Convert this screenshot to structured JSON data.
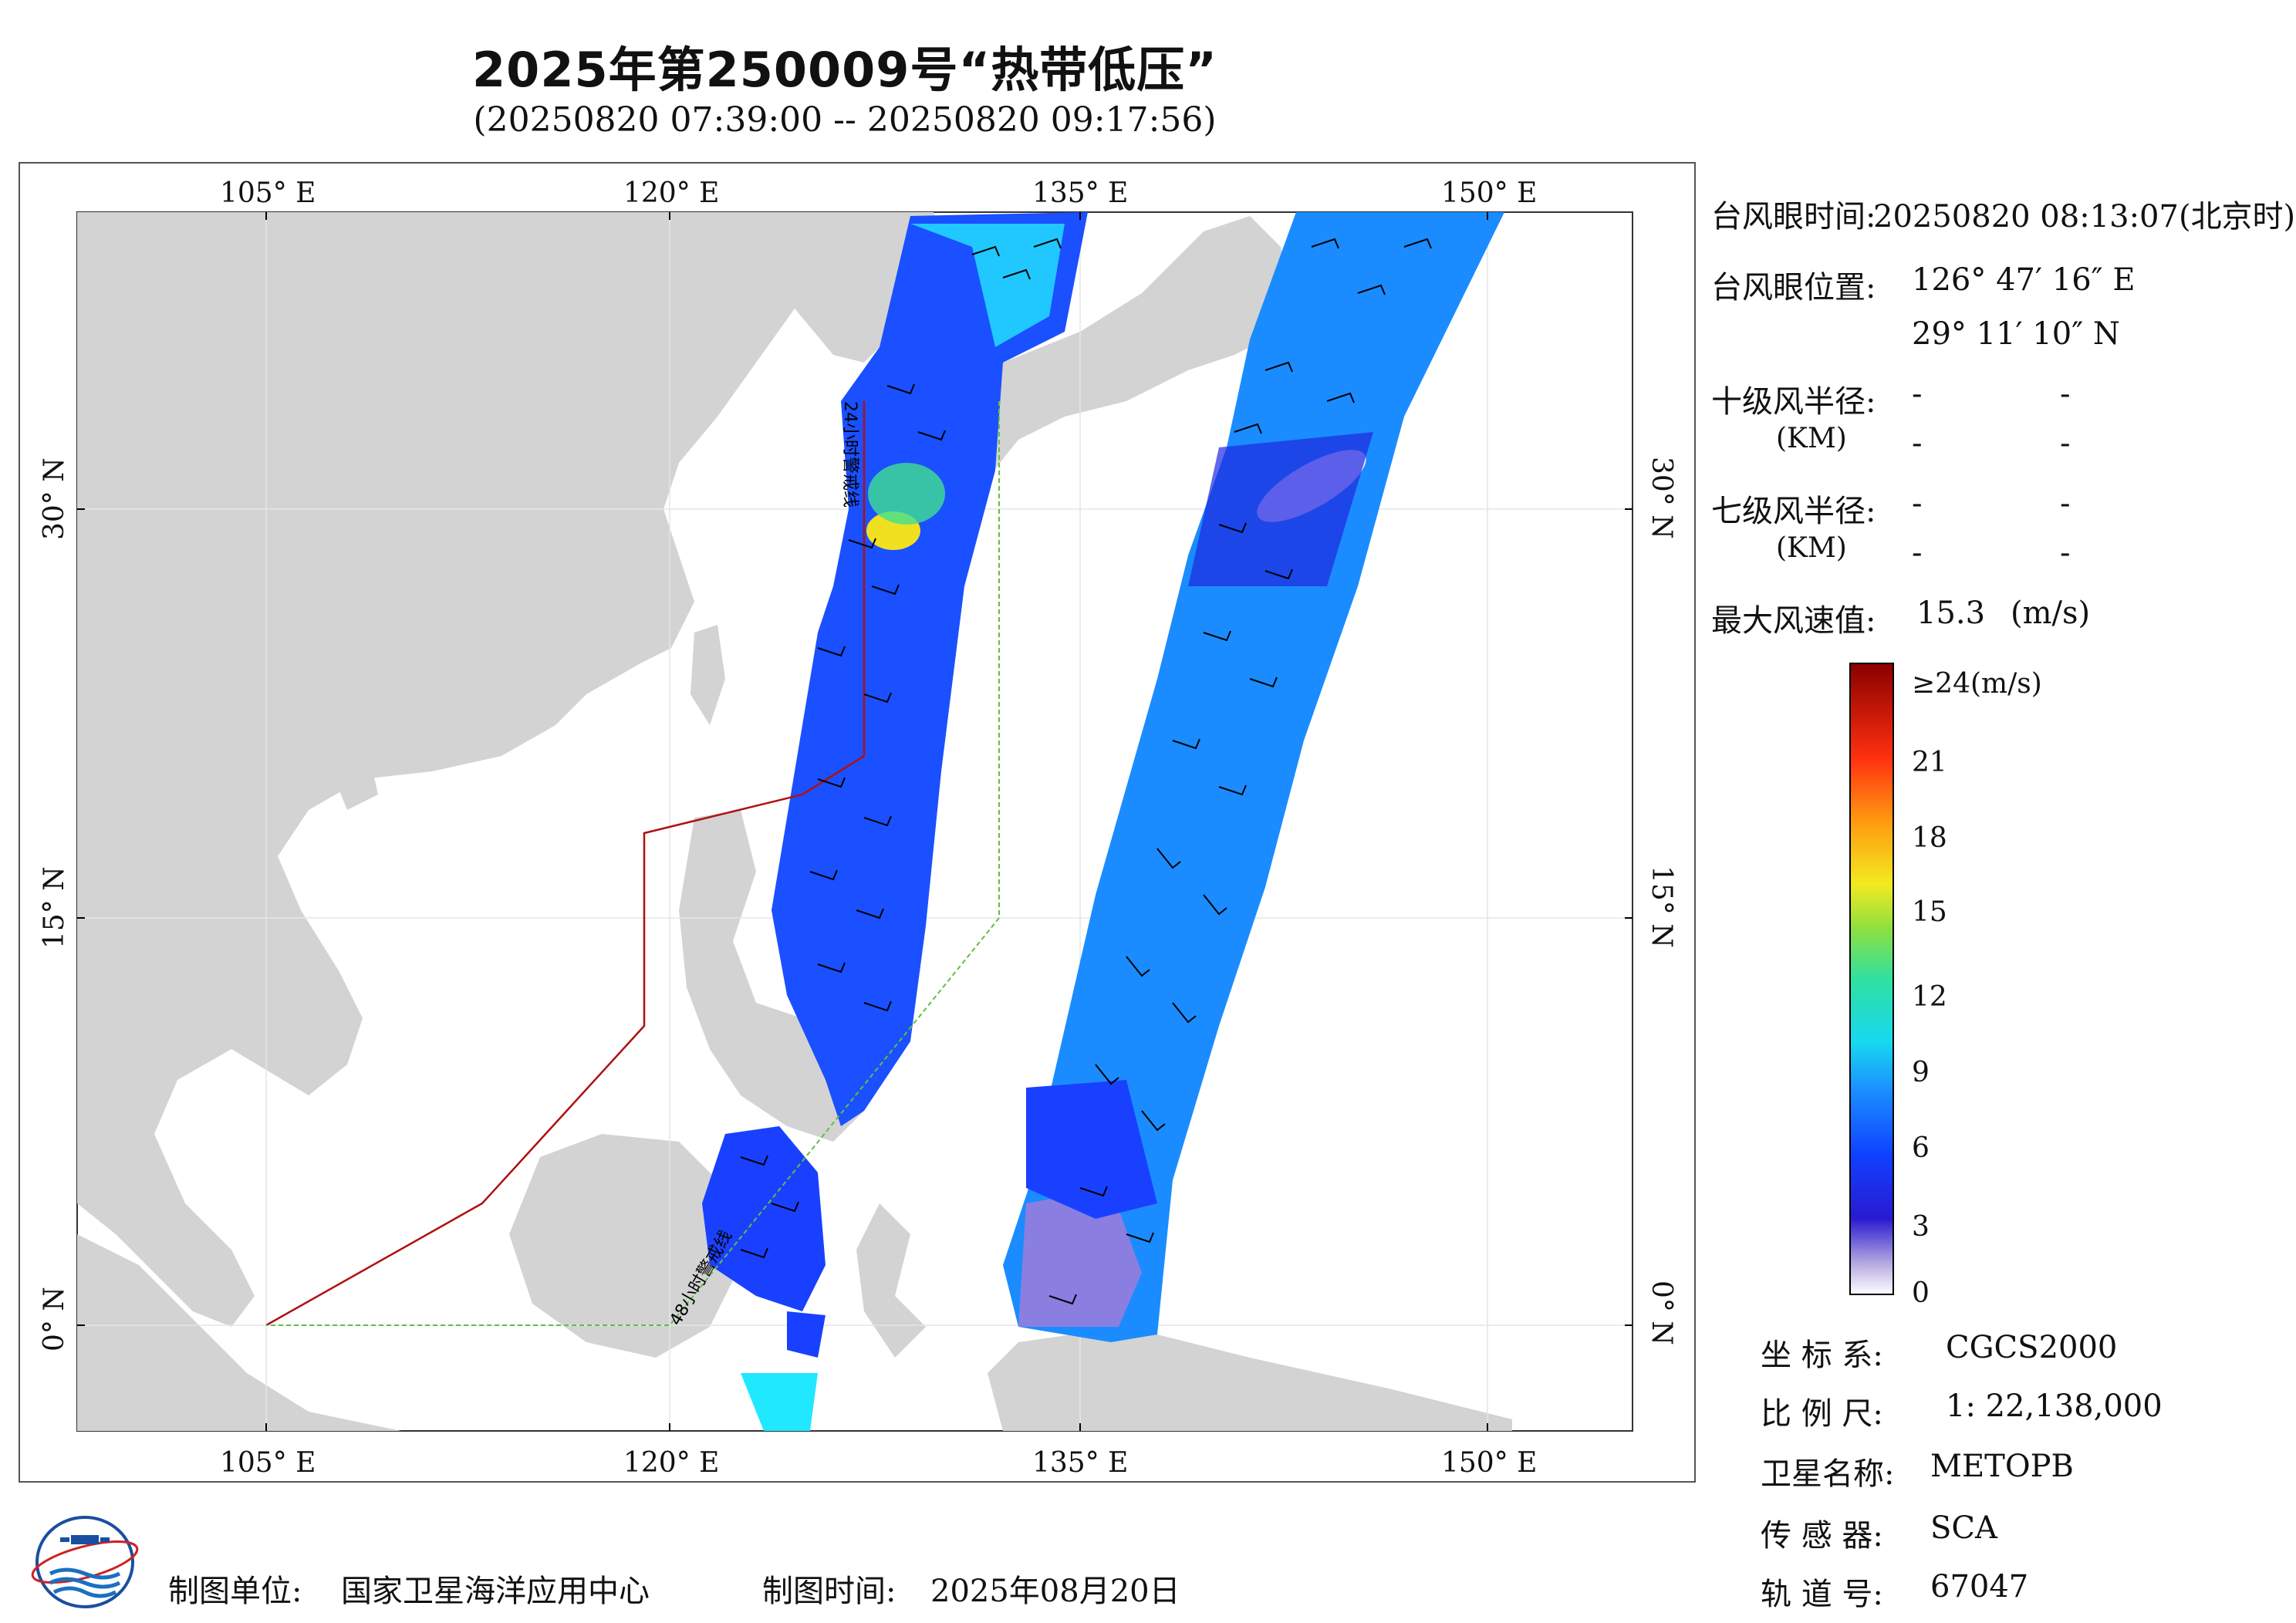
{
  "header": {
    "title": "2025年第250009号“热带低压”",
    "subtitle": "(20250820 07:39:00 -- 20250820 09:17:56)"
  },
  "map": {
    "x_axis_labels": [
      "105° E",
      "120° E",
      "135° E",
      "150° E"
    ],
    "y_axis_labels": [
      "30° N",
      "15° N",
      "0° N"
    ],
    "warning_line_24h": "24小时警戒线",
    "warning_line_48h": "48小时警戒线",
    "colors": {
      "land": "#d3d3d3",
      "ocean": "#ffffff",
      "warning_24h": "#b01010",
      "warning_48h": "#5fbf3f"
    }
  },
  "info": {
    "eye_time_label": "台风眼时间:",
    "eye_time_value": "20250820 08:13:07(北京时)",
    "eye_pos_label": "台风眼位置:",
    "eye_lon": "126° 47′ 16″ E",
    "eye_lat": "29° 11′ 10″ N",
    "r10_label": "十级风半径:",
    "r7_label": "七级风半径:",
    "unit_km": "(KM)",
    "dash": "-",
    "max_wind_label": "最大风速值:",
    "max_wind_value": "15.3",
    "max_wind_unit": "(m/s)"
  },
  "colorbar": {
    "labels": [
      "≥24(m/s)",
      "21",
      "18",
      "15",
      "12",
      "9",
      "6",
      "3",
      "0"
    ],
    "min": 0,
    "max": 24
  },
  "meta": {
    "crs_label": "坐 标 系:",
    "crs_value": "CGCS2000",
    "scale_label": "比 例 尺:",
    "scale_value": "1: 22,138,000",
    "satellite_label": "卫星名称:",
    "satellite_value": "METOPB",
    "sensor_label": "传 感 器:",
    "sensor_value": "SCA",
    "orbit_label": "轨 道 号:",
    "orbit_value": "67047"
  },
  "footer": {
    "maker_label": "制图单位:",
    "maker_value": "国家卫星海洋应用中心",
    "date_label": "制图时间:",
    "date_value": "2025年08月20日"
  }
}
